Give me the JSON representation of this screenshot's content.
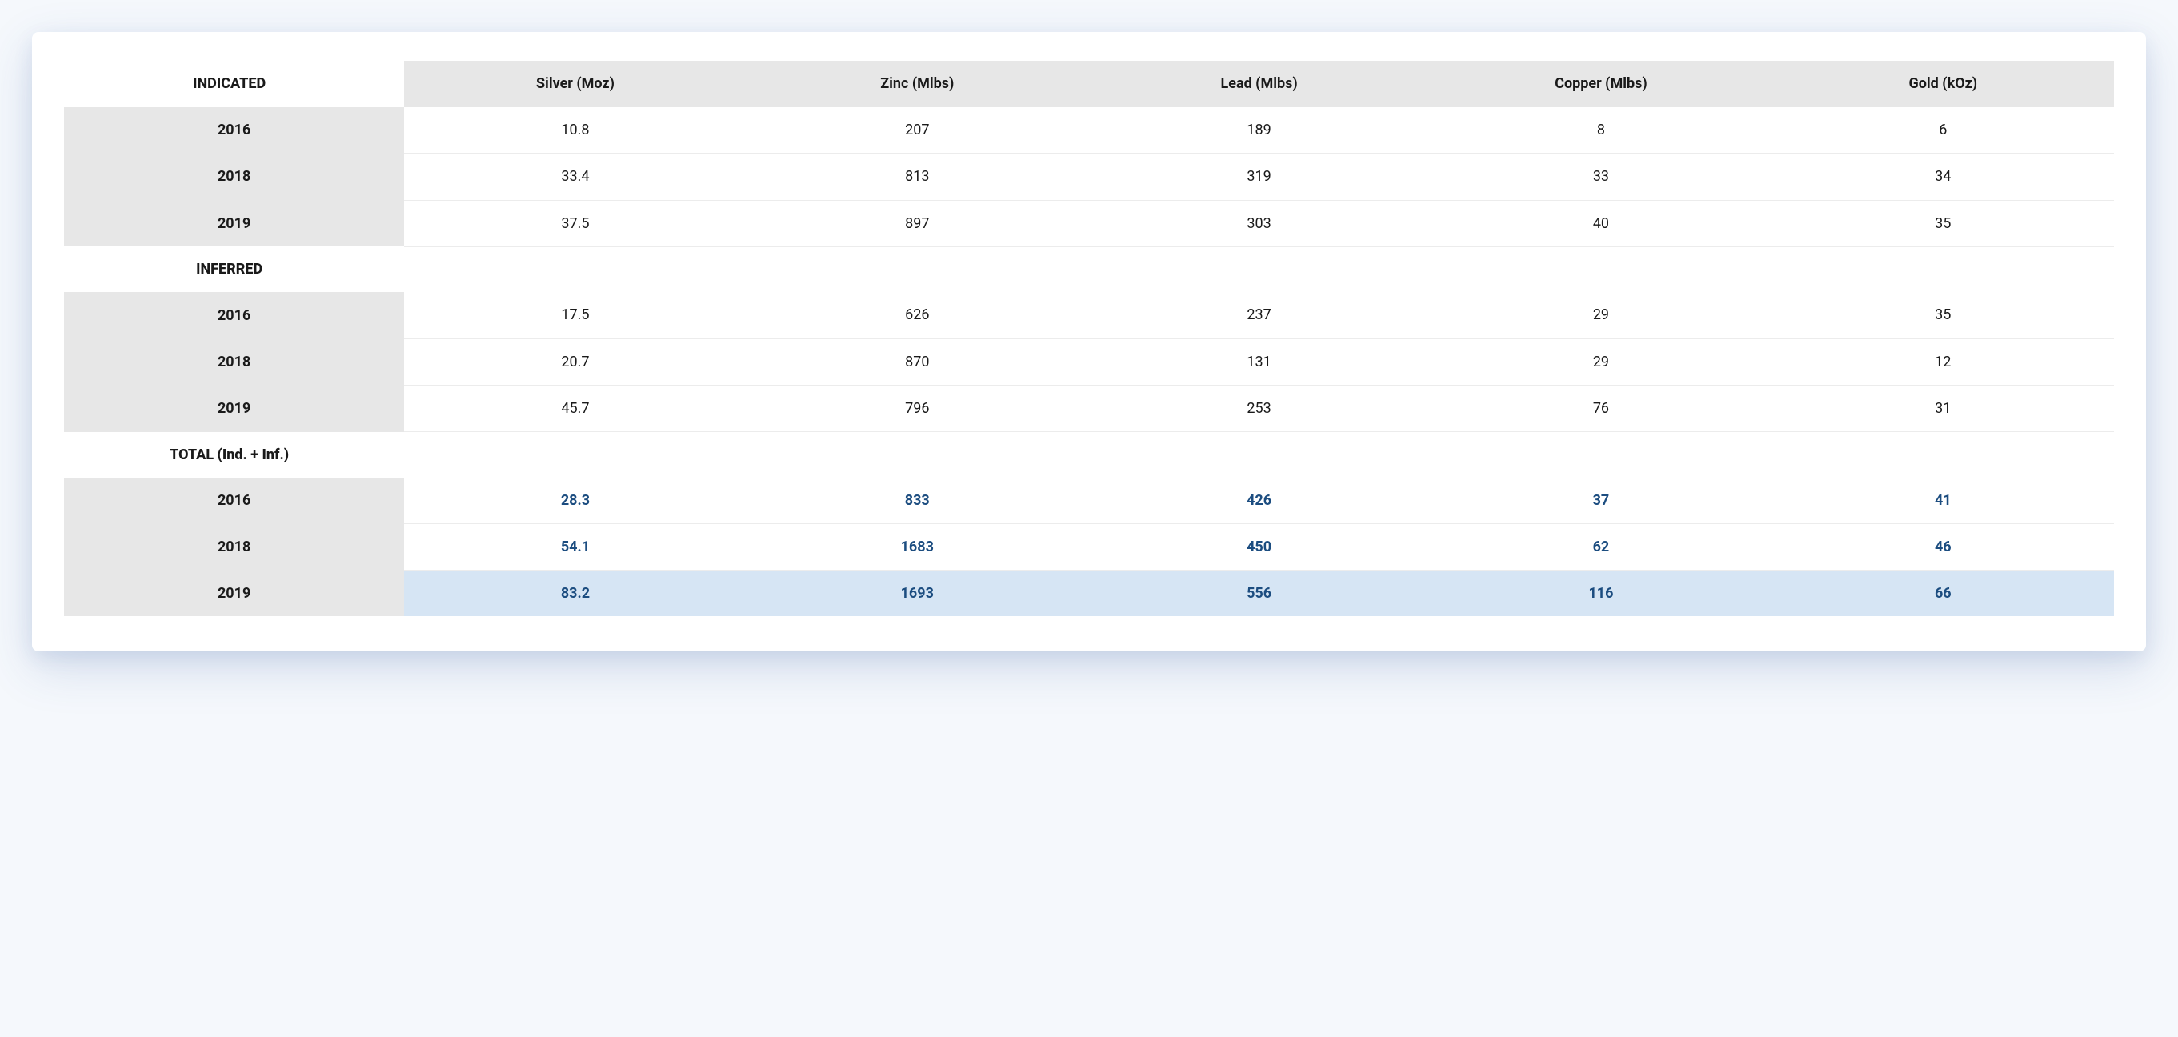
{
  "table": {
    "type": "table",
    "columns": [
      "Silver (Moz)",
      "Zinc (Mlbs)",
      "Lead (Mlbs)",
      "Copper (Mlbs)",
      "Gold (kOz)"
    ],
    "header_bg": "#e7e7e7",
    "row_border_color": "#ececec",
    "text_color": "#1a1a1a",
    "total_text_color": "#1c4d80",
    "highlight_bg": "#d6e5f4",
    "card_bg": "#ffffff",
    "body_bg": "#f5f8fc",
    "font_size_pt": 14,
    "sections": [
      {
        "label": "INDICATED",
        "total": false,
        "rows": [
          {
            "year": "2016",
            "values": [
              "10.8",
              "207",
              "189",
              "8",
              "6"
            ]
          },
          {
            "year": "2018",
            "values": [
              "33.4",
              "813",
              "319",
              "33",
              "34"
            ]
          },
          {
            "year": "2019",
            "values": [
              "37.5",
              "897",
              "303",
              "40",
              "35"
            ]
          }
        ]
      },
      {
        "label": "INFERRED",
        "total": false,
        "rows": [
          {
            "year": "2016",
            "values": [
              "17.5",
              "626",
              "237",
              "29",
              "35"
            ]
          },
          {
            "year": "2018",
            "values": [
              "20.7",
              "870",
              "131",
              "29",
              "12"
            ]
          },
          {
            "year": "2019",
            "values": [
              "45.7",
              "796",
              "253",
              "76",
              "31"
            ]
          }
        ]
      },
      {
        "label": "TOTAL (Ind. + Inf.)",
        "total": true,
        "rows": [
          {
            "year": "2016",
            "values": [
              "28.3",
              "833",
              "426",
              "37",
              "41"
            ],
            "highlight": false
          },
          {
            "year": "2018",
            "values": [
              "54.1",
              "1683",
              "450",
              "62",
              "46"
            ],
            "highlight": false
          },
          {
            "year": "2019",
            "values": [
              "83.2",
              "1693",
              "556",
              "116",
              "66"
            ],
            "highlight": true
          }
        ]
      }
    ]
  }
}
